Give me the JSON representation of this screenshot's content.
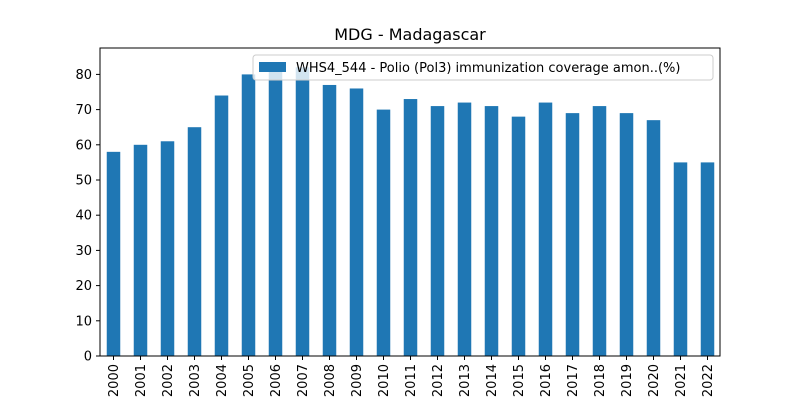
{
  "chart_data": {
    "type": "bar",
    "title": "MDG - Madagascar",
    "xlabel": "",
    "ylabel": "",
    "categories": [
      "2000",
      "2001",
      "2002",
      "2003",
      "2004",
      "2005",
      "2006",
      "2007",
      "2008",
      "2009",
      "2010",
      "2011",
      "2012",
      "2013",
      "2014",
      "2015",
      "2016",
      "2017",
      "2018",
      "2019",
      "2020",
      "2021",
      "2022"
    ],
    "series": [
      {
        "name": "WHS4_544 - Polio (Pol3) immunization coverage amon..(%)",
        "color": "#1f77b4",
        "values": [
          58,
          60,
          61,
          65,
          74,
          80,
          82,
          82,
          77,
          76,
          70,
          73,
          71,
          72,
          71,
          68,
          72,
          69,
          71,
          69,
          67,
          55,
          55
        ]
      }
    ],
    "ylim": [
      0,
      87.5
    ],
    "yticks": [
      0,
      10,
      20,
      30,
      40,
      50,
      60,
      70,
      80
    ],
    "grid": false,
    "legend_position": "top-right"
  }
}
